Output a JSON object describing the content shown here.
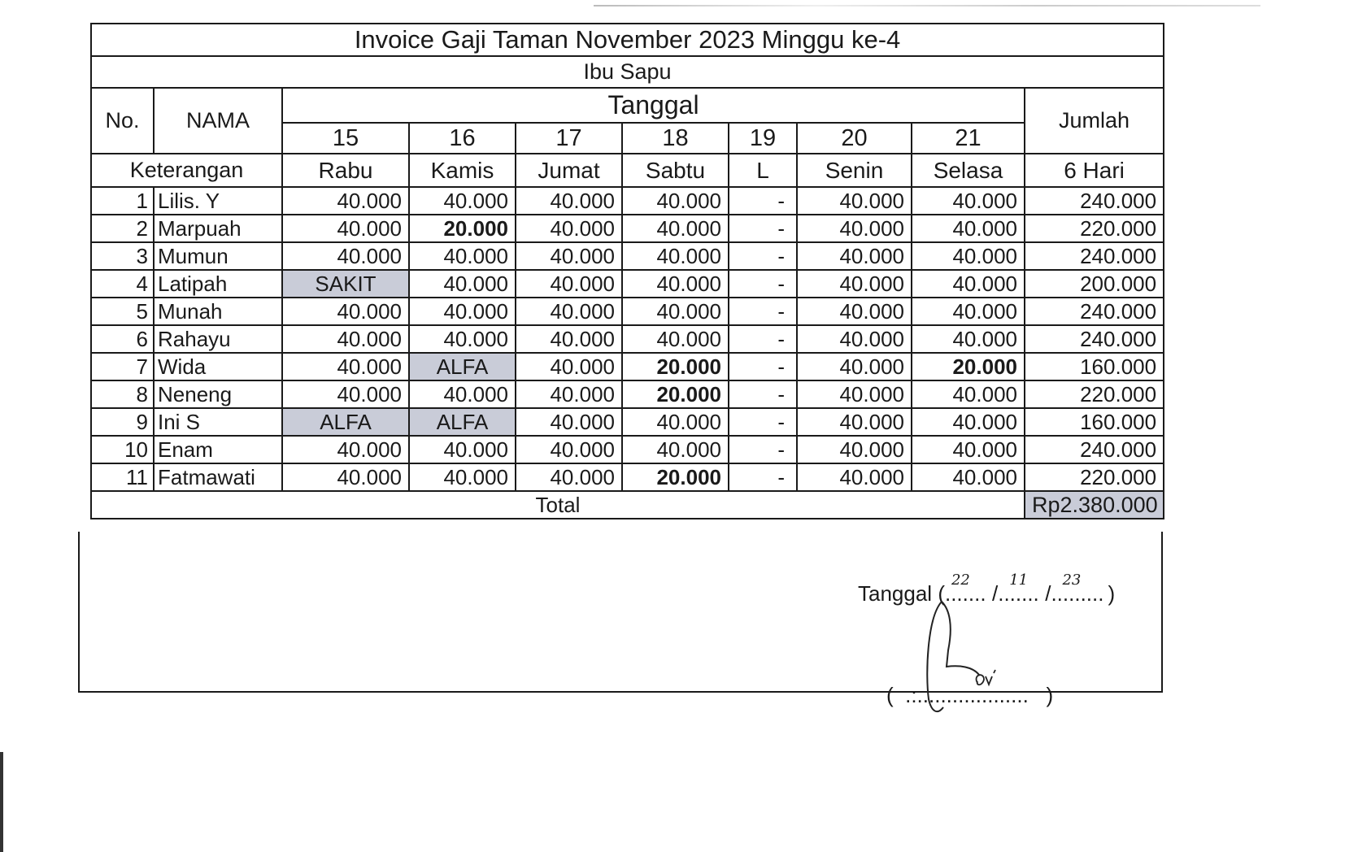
{
  "title": "Invoice Gaji Taman November 2023 Minggu ke-4",
  "subtitle": "Ibu Sapu",
  "headers": {
    "no": "No.",
    "nama": "NAMA",
    "tanggal": "Tanggal",
    "keterangan": "Keterangan",
    "jumlah": "Jumlah",
    "jumlah_sub": "6 Hari"
  },
  "dates": [
    "15",
    "16",
    "17",
    "18",
    "19",
    "20",
    "21"
  ],
  "days": [
    "Rabu",
    "Kamis",
    "Jumat",
    "Sabtu",
    "L",
    "Senin",
    "Selasa"
  ],
  "rows": [
    {
      "no": "1",
      "name": "Lilis. Y",
      "cells": [
        {
          "v": "40.000"
        },
        {
          "v": "40.000"
        },
        {
          "v": "40.000"
        },
        {
          "v": "40.000"
        },
        {
          "v": "-"
        },
        {
          "v": "40.000"
        },
        {
          "v": "40.000"
        }
      ],
      "total": "240.000"
    },
    {
      "no": "2",
      "name": "Marpuah",
      "cells": [
        {
          "v": "40.000"
        },
        {
          "v": "20.000",
          "bold": true
        },
        {
          "v": "40.000"
        },
        {
          "v": "40.000"
        },
        {
          "v": "-"
        },
        {
          "v": "40.000"
        },
        {
          "v": "40.000"
        }
      ],
      "total": "220.000"
    },
    {
      "no": "3",
      "name": "Mumun",
      "cells": [
        {
          "v": "40.000"
        },
        {
          "v": "40.000"
        },
        {
          "v": "40.000"
        },
        {
          "v": "40.000"
        },
        {
          "v": "-"
        },
        {
          "v": "40.000"
        },
        {
          "v": "40.000"
        }
      ],
      "total": "240.000"
    },
    {
      "no": "4",
      "name": "Latipah",
      "cells": [
        {
          "v": "SAKIT",
          "mark": true
        },
        {
          "v": "40.000"
        },
        {
          "v": "40.000"
        },
        {
          "v": "40.000"
        },
        {
          "v": "-"
        },
        {
          "v": "40.000"
        },
        {
          "v": "40.000"
        }
      ],
      "total": "200.000"
    },
    {
      "no": "5",
      "name": "Munah",
      "cells": [
        {
          "v": "40.000"
        },
        {
          "v": "40.000"
        },
        {
          "v": "40.000"
        },
        {
          "v": "40.000"
        },
        {
          "v": "-"
        },
        {
          "v": "40.000"
        },
        {
          "v": "40.000"
        }
      ],
      "total": "240.000"
    },
    {
      "no": "6",
      "name": "Rahayu",
      "cells": [
        {
          "v": "40.000"
        },
        {
          "v": "40.000"
        },
        {
          "v": "40.000"
        },
        {
          "v": "40.000"
        },
        {
          "v": "-"
        },
        {
          "v": "40.000"
        },
        {
          "v": "40.000"
        }
      ],
      "total": "240.000"
    },
    {
      "no": "7",
      "name": "Wida",
      "cells": [
        {
          "v": "40.000"
        },
        {
          "v": "ALFA",
          "mark": true
        },
        {
          "v": "40.000"
        },
        {
          "v": "20.000",
          "bold": true
        },
        {
          "v": "-"
        },
        {
          "v": "40.000"
        },
        {
          "v": "20.000",
          "bold": true
        }
      ],
      "total": "160.000"
    },
    {
      "no": "8",
      "name": "Neneng",
      "cells": [
        {
          "v": "40.000"
        },
        {
          "v": "40.000"
        },
        {
          "v": "40.000"
        },
        {
          "v": "20.000",
          "bold": true
        },
        {
          "v": "-"
        },
        {
          "v": "40.000"
        },
        {
          "v": "40.000"
        }
      ],
      "total": "220.000"
    },
    {
      "no": "9",
      "name": "Ini S",
      "cells": [
        {
          "v": "ALFA",
          "mark": true
        },
        {
          "v": "ALFA",
          "mark": true
        },
        {
          "v": "40.000"
        },
        {
          "v": "40.000"
        },
        {
          "v": "-"
        },
        {
          "v": "40.000"
        },
        {
          "v": "40.000"
        }
      ],
      "total": "160.000"
    },
    {
      "no": "10",
      "name": "Enam",
      "cells": [
        {
          "v": "40.000"
        },
        {
          "v": "40.000"
        },
        {
          "v": "40.000"
        },
        {
          "v": "40.000"
        },
        {
          "v": "-"
        },
        {
          "v": "40.000"
        },
        {
          "v": "40.000"
        }
      ],
      "total": "240.000"
    },
    {
      "no": "11",
      "name": "Fatmawati",
      "cells": [
        {
          "v": "40.000"
        },
        {
          "v": "40.000"
        },
        {
          "v": "40.000"
        },
        {
          "v": "20.000",
          "bold": true
        },
        {
          "v": "-"
        },
        {
          "v": "40.000"
        },
        {
          "v": "40.000"
        }
      ],
      "total": "220.000"
    }
  ],
  "total_label": "Total",
  "grand_total": "Rp2.380.000",
  "highlight_color": "#c9ccd8",
  "signature": {
    "date_label": "Tanggal",
    "date_day": "22",
    "date_month": "11",
    "date_year": "23",
    "name_handwritten": "Eni"
  }
}
